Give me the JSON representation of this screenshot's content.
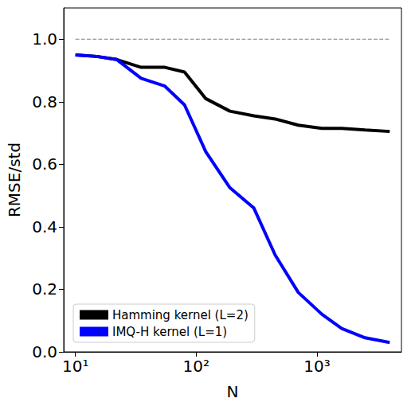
{
  "chart_data": {
    "type": "line",
    "x_label": "N",
    "y_label": "RMSE/std",
    "log": "x",
    "grid": false,
    "legend": "lower left",
    "xlim": [
      8,
      5000
    ],
    "xticks": [
      {
        "value": 10,
        "label": "10¹"
      },
      {
        "value": 100,
        "label": "10²"
      },
      {
        "value": 1000,
        "label": "10³"
      }
    ],
    "ylim": [
      0,
      1.1
    ],
    "yticks": [
      {
        "value": 0,
        "label": "0.0"
      },
      0.2,
      0.4,
      0.6,
      0.8,
      {
        "value": 1,
        "label": "1.0"
      }
    ],
    "x": [
      10,
      15,
      22,
      35,
      55,
      80,
      120,
      190,
      300,
      450,
      700,
      1100,
      1600,
      2500,
      4000
    ],
    "series": [
      {
        "color": "#808080",
        "line_style": "dashed",
        "values": [
          1,
          1,
          1,
          1,
          1,
          1,
          1,
          1,
          1,
          1,
          1,
          1,
          1,
          1,
          1
        ]
      },
      {
        "name": "Hamming kernel (L=2)",
        "color": "#000000",
        "line_style": "solid",
        "values": [
          0.95,
          0.945,
          0.935,
          0.91,
          0.91,
          0.895,
          0.81,
          0.77,
          0.755,
          0.745,
          0.725,
          0.715,
          0.715,
          0.71,
          0.705
        ]
      },
      {
        "name": "IMQ-H kernel (L=1)",
        "color": "#0000ff",
        "line_style": "solid",
        "values": [
          0.95,
          0.945,
          0.935,
          0.875,
          0.85,
          0.79,
          0.64,
          0.525,
          0.46,
          0.31,
          0.19,
          0.12,
          0.075,
          0.045,
          0.03
        ]
      }
    ]
  }
}
